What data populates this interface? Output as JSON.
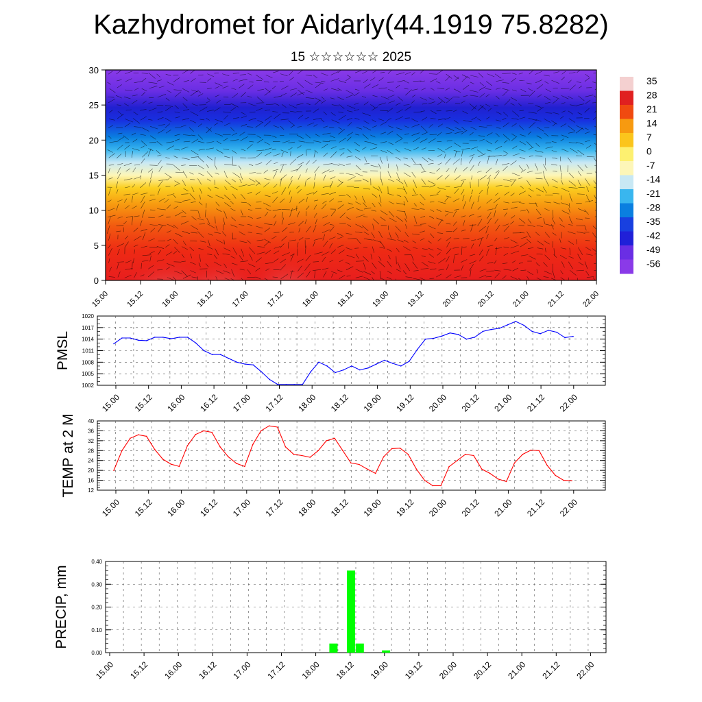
{
  "title": "Kazhydromet for Aidarly(44.1919 75.8282)",
  "subtitle": "15 ☆☆☆☆☆☆ 2025",
  "x_tick_labels": [
    "15.00",
    "15.12",
    "16.00",
    "16.12",
    "17.00",
    "17.12",
    "18.00",
    "18.12",
    "19.00",
    "19.12",
    "20.00",
    "20.12",
    "21.00",
    "21.12",
    "22.00"
  ],
  "chart_data": [
    {
      "type": "heatmap",
      "name": "upper-air temperature cross-section with wind vectors",
      "ylim": [
        0,
        30
      ],
      "y_ticks": [
        0,
        5,
        10,
        15,
        20,
        25,
        30
      ],
      "colorbar": {
        "labels": [
          "35",
          "28",
          "21",
          "14",
          "7",
          "0",
          "-7",
          "-14",
          "-21",
          "-28",
          "-35",
          "-42",
          "-49",
          "-56"
        ],
        "colors": [
          "#f4d0d0",
          "#e02020",
          "#f04a10",
          "#f79a10",
          "#fbc51c",
          "#fdf070",
          "#fdf6b8",
          "#c8e8f4",
          "#39b6ef",
          "#0a7fe0",
          "#1840e0",
          "#2020d8",
          "#6a2ee4",
          "#8a3ae8"
        ]
      }
    },
    {
      "type": "line",
      "ylabel": "PMSL",
      "ylim": [
        1002,
        1020
      ],
      "y_ticks": [
        1002,
        1005,
        1008,
        1011,
        1014,
        1017,
        1020
      ],
      "color": "#0000ff",
      "x": [
        0,
        3,
        6,
        9,
        12,
        15,
        18,
        21,
        24,
        27,
        30,
        33,
        36,
        39,
        42,
        45,
        48,
        51,
        54,
        57,
        60,
        63,
        66,
        69,
        72,
        75,
        78,
        81,
        84,
        87,
        90,
        93,
        96,
        99,
        102,
        105,
        108,
        111,
        114,
        117,
        120,
        123,
        126,
        129,
        132,
        135,
        138,
        141,
        144,
        147,
        150,
        153,
        156,
        159,
        162,
        165,
        168
      ],
      "values": [
        1012.8,
        1014.3,
        1014.3,
        1013.7,
        1013.6,
        1014.5,
        1014.5,
        1014.1,
        1014.5,
        1014.5,
        1013.0,
        1011.0,
        1010.0,
        1010.0,
        1009.0,
        1008.0,
        1007.5,
        1007.3,
        1005.5,
        1003.5,
        1002.2,
        1002.2,
        1002.2,
        1002.2,
        1005.5,
        1008.0,
        1007.0,
        1005.3,
        1006.0,
        1007.0,
        1006.0,
        1006.5,
        1007.5,
        1008.5,
        1007.7,
        1007.0,
        1008.2,
        1011.3,
        1014.0,
        1014.2,
        1014.8,
        1015.6,
        1015.2,
        1014.0,
        1014.5,
        1016.0,
        1016.5,
        1016.8,
        1017.7,
        1018.6,
        1017.6,
        1016.0,
        1015.4,
        1016.3,
        1015.8,
        1014.4,
        1014.7
      ]
    },
    {
      "type": "line",
      "ylabel": "TEMP at 2 M",
      "ylim": [
        12,
        40
      ],
      "y_ticks": [
        12,
        16,
        20,
        24,
        28,
        32,
        36,
        40
      ],
      "color": "#ff0000",
      "x": [
        0,
        3,
        6,
        9,
        12,
        15,
        18,
        21,
        24,
        27,
        30,
        33,
        36,
        39,
        42,
        45,
        48,
        51,
        54,
        57,
        60,
        63,
        66,
        69,
        72,
        75,
        78,
        81,
        84,
        87,
        90,
        93,
        96,
        99,
        102,
        105,
        108,
        111,
        114,
        117,
        120,
        123,
        126,
        129,
        132,
        135,
        138,
        141,
        144,
        147,
        150,
        153,
        156,
        159,
        162,
        165,
        168
      ],
      "values": [
        20.0,
        28.0,
        33.0,
        34.4,
        33.8,
        28.5,
        24.5,
        22.5,
        21.6,
        30.0,
        34.5,
        36.0,
        35.4,
        29.5,
        25.5,
        22.8,
        21.6,
        30.5,
        36.0,
        38.0,
        37.5,
        29.5,
        26.5,
        26.0,
        25.3,
        28.0,
        32.0,
        33.0,
        28.0,
        23.0,
        22.4,
        20.5,
        18.8,
        25.5,
        28.8,
        29.0,
        26.5,
        20.5,
        16.0,
        13.8,
        13.8,
        21.5,
        24.0,
        26.5,
        26.0,
        20.5,
        18.8,
        16.5,
        15.5,
        23.0,
        26.5,
        28.2,
        28.0,
        22.0,
        18.0,
        16.0,
        15.8
      ]
    },
    {
      "type": "bar",
      "ylabel": "PRECIP, mm",
      "ylim": [
        0,
        0.4
      ],
      "y_ticks": [
        "0.00",
        "0.10",
        "0.20",
        "0.30",
        "0.40"
      ],
      "color": "#00ff00",
      "bars": [
        {
          "x": 78,
          "value": 0.04
        },
        {
          "x": 84,
          "value": 0.36
        },
        {
          "x": 87,
          "value": 0.04
        },
        {
          "x": 96,
          "value": 0.01
        }
      ]
    }
  ]
}
